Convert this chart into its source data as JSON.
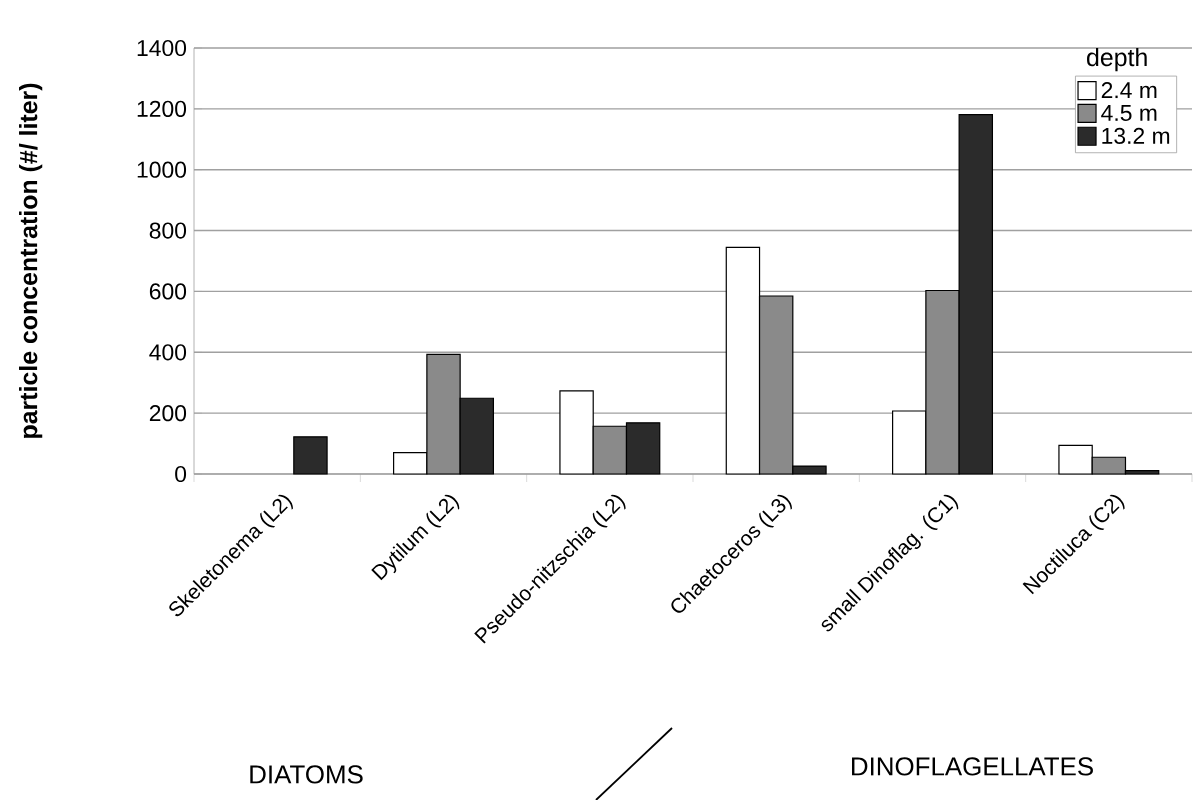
{
  "chart_data": {
    "type": "bar",
    "categories": [
      "Skeletonema (L2)",
      "Dytilum (L2)",
      "Pseudo-nitzschia (L2)",
      "Chaetoceros (L3)",
      "small Dinoflag. (C1)",
      "Noctiluca (C2)"
    ],
    "series": [
      {
        "name": "2.4 m",
        "color": "#ffffff",
        "values": [
          null,
          70,
          273,
          745,
          207,
          94
        ]
      },
      {
        "name": "4.5 m",
        "color": "#8a8a8a",
        "values": [
          null,
          393,
          157,
          585,
          603,
          55
        ]
      },
      {
        "name": "13.2 m",
        "color": "#2b2b2b",
        "values": [
          122,
          249,
          168,
          26,
          1181,
          11
        ]
      }
    ],
    "ylabel": "particle concentration (#/ liter)",
    "legend_title": "depth",
    "legend": "top right",
    "ylim": [
      0,
      1400
    ],
    "yticks": [
      0,
      200,
      400,
      600,
      800,
      1000,
      1200,
      1400
    ],
    "grid": "y",
    "annotations": [
      "DIATOMS",
      "DINOFLAGELLATES"
    ]
  }
}
